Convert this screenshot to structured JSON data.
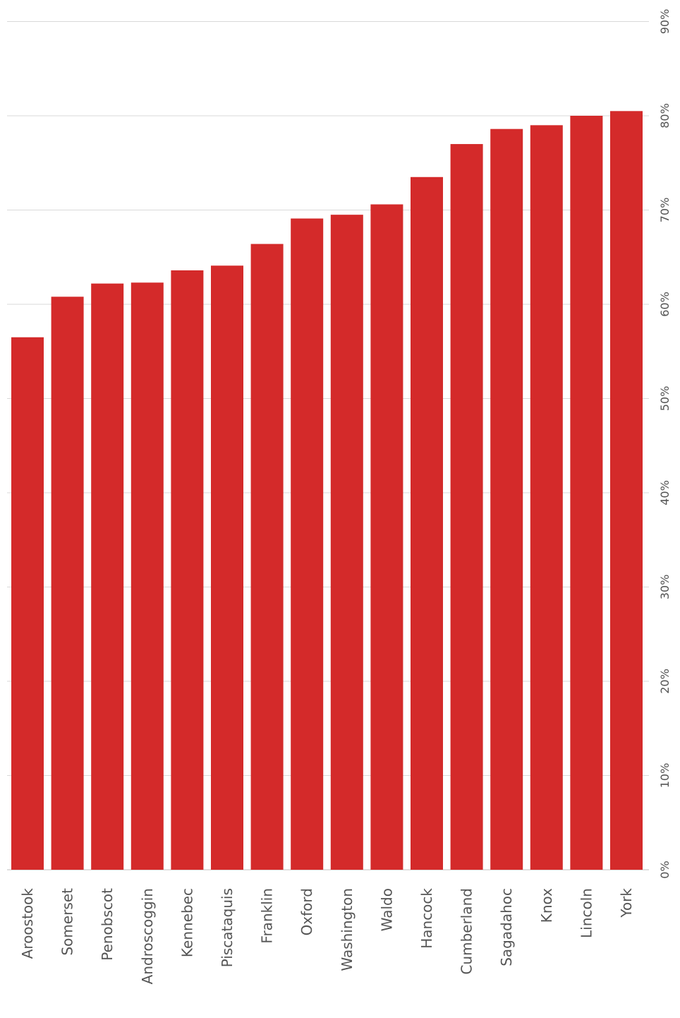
{
  "chart_data": {
    "type": "bar",
    "orientation": "vertical",
    "categories": [
      "Aroostook",
      "Somerset",
      "Penobscot",
      "Androscoggin",
      "Kennebec",
      "Piscataquis",
      "Franklin",
      "Oxford",
      "Washington",
      "Waldo",
      "Hancock",
      "Cumberland",
      "Sagadahoc",
      "Knox",
      "Lincoln",
      "York"
    ],
    "values": [
      0.565,
      0.608,
      0.622,
      0.623,
      0.636,
      0.641,
      0.664,
      0.691,
      0.695,
      0.706,
      0.735,
      0.77,
      0.786,
      0.79,
      0.8,
      0.805
    ],
    "ylim": [
      0,
      0.9
    ],
    "yticks": [
      0,
      0.1,
      0.2,
      0.3,
      0.4,
      0.5,
      0.6,
      0.7,
      0.8,
      0.9
    ],
    "ytick_labels": [
      "0%",
      "10%",
      "20%",
      "30%",
      "40%",
      "50%",
      "60%",
      "70%",
      "80%",
      "90%"
    ],
    "title": "",
    "xlabel": "",
    "ylabel": "",
    "grid": true,
    "legend": false,
    "bar_color": "#d42a2a",
    "grid_color": "#d9d9d9",
    "text_color": "#555555"
  }
}
